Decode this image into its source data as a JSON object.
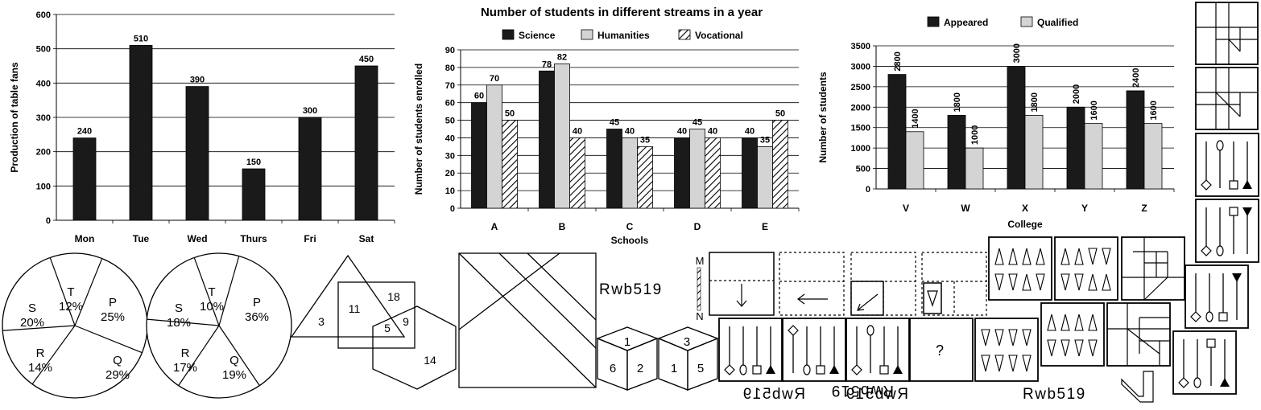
{
  "chart_data": [
    {
      "type": "bar",
      "title": "",
      "ylabel": "Production of table fans",
      "categories": [
        "Mon",
        "Tue",
        "Wed",
        "Thurs",
        "Fri",
        "Sat"
      ],
      "values": [
        240,
        510,
        390,
        150,
        300,
        450
      ],
      "ylim": [
        0,
        600
      ],
      "yticks": [
        "0",
        "100",
        "200",
        "300",
        "400",
        "500",
        "600"
      ],
      "grid": true,
      "colors": [
        "#1a1a1a"
      ]
    },
    {
      "type": "bar",
      "title": "Number of students in different streams in a year",
      "xlabel": "Schools",
      "ylabel": "Number of students enrolled",
      "categories": [
        "A",
        "B",
        "C",
        "D",
        "E"
      ],
      "series": [
        {
          "name": "Science",
          "values": [
            60,
            78,
            45,
            40,
            40
          ]
        },
        {
          "name": "Humanities",
          "values": [
            70,
            82,
            40,
            45,
            35
          ]
        },
        {
          "name": "Vocational",
          "values": [
            50,
            40,
            35,
            40,
            50
          ]
        }
      ],
      "ylim": [
        0,
        90
      ],
      "yticks": [
        "0",
        "10",
        "20",
        "30",
        "40",
        "50",
        "60",
        "70",
        "80",
        "90"
      ],
      "legend": "top",
      "grid": true,
      "colors": [
        "#1a1a1a",
        "#d4d4d4",
        "hatched"
      ]
    },
    {
      "type": "bar",
      "title": "",
      "xlabel": "College",
      "ylabel": "Number of students",
      "categories": [
        "V",
        "W",
        "X",
        "Y",
        "Z"
      ],
      "series": [
        {
          "name": "Appeared",
          "values": [
            2800,
            1800,
            3000,
            2000,
            2400
          ]
        },
        {
          "name": "Qualified",
          "values": [
            1400,
            1000,
            1800,
            1600,
            1600
          ]
        }
      ],
      "ylim": [
        0,
        3500
      ],
      "yticks": [
        "0",
        "500",
        "1000",
        "1500",
        "2000",
        "2500",
        "3000",
        "3500"
      ],
      "legend": "top",
      "grid": true,
      "colors": [
        "#1a1a1a",
        "#d4d4d4"
      ]
    }
  ],
  "pies": [
    {
      "slices": [
        {
          "label": "T",
          "pct": "12%",
          "value": 12
        },
        {
          "label": "P",
          "pct": "25%",
          "value": 25
        },
        {
          "label": "Q",
          "pct": "29%",
          "value": 29
        },
        {
          "label": "R",
          "pct": "14%",
          "value": 14
        },
        {
          "label": "S",
          "pct": "20%",
          "value": 20
        }
      ]
    },
    {
      "slices": [
        {
          "label": "T",
          "pct": "10%",
          "value": 10
        },
        {
          "label": "P",
          "pct": "36%",
          "value": 36
        },
        {
          "label": "Q",
          "pct": "19%",
          "value": 19
        },
        {
          "label": "R",
          "pct": "17%",
          "value": 17
        },
        {
          "label": "S",
          "pct": "18%",
          "value": 18
        }
      ]
    }
  ],
  "venn": {
    "triangle_only": "3",
    "triangle_square": "11",
    "square_only": "18",
    "all_three": "5",
    "square_hexagon": "9",
    "hexagon_only": "14"
  },
  "mirror": {
    "word": "Rwb519",
    "mirror_top": "M",
    "mirror_bottom": "N",
    "options": [
      "Rwb519",
      "Rwb519",
      "Rwb519",
      "Rwb519"
    ]
  },
  "cubes": [
    {
      "top": "1",
      "left": "6",
      "right": "2"
    },
    {
      "top": "3",
      "left": "1",
      "right": "5"
    }
  ],
  "question_mark": "?"
}
